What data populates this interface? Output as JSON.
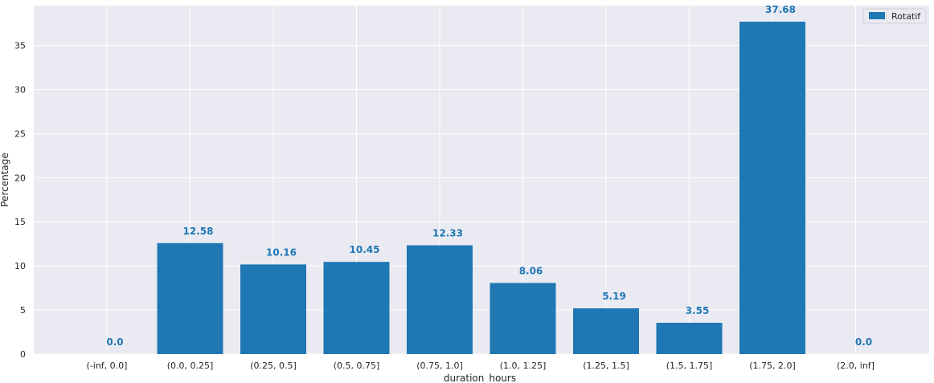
{
  "chart_data": {
    "type": "bar",
    "categories": [
      "(-inf, 0.0]",
      "(0.0, 0.25]",
      "(0.25, 0.5]",
      "(0.5, 0.75]",
      "(0.75, 1.0]",
      "(1.0, 1.25]",
      "(1.25, 1.5]",
      "(1.5, 1.75]",
      "(1.75, 2.0]",
      "(2.0, inf]"
    ],
    "series": [
      {
        "name": "Rotatif",
        "values": [
          0.0,
          12.58,
          10.16,
          10.45,
          12.33,
          8.06,
          5.19,
          3.55,
          37.68,
          0.0
        ],
        "data_labels": [
          "0.0",
          "12.58",
          "10.16",
          "10.45",
          "12.33",
          "8.06",
          "5.19",
          "3.55",
          "37.68",
          "0.0"
        ]
      }
    ],
    "title": "",
    "xlabel": "duration_hours",
    "ylabel": "Percentage",
    "ylim": [
      0,
      39.5
    ],
    "yticks": [
      0,
      5,
      10,
      15,
      20,
      25,
      30,
      35
    ],
    "grid": true,
    "legend_position": "top-right",
    "colors": {
      "bar": "#1f77b4",
      "plot_background": "#eaeaf2",
      "grid": "#ffffff",
      "data_label": "#1f77b4"
    }
  }
}
